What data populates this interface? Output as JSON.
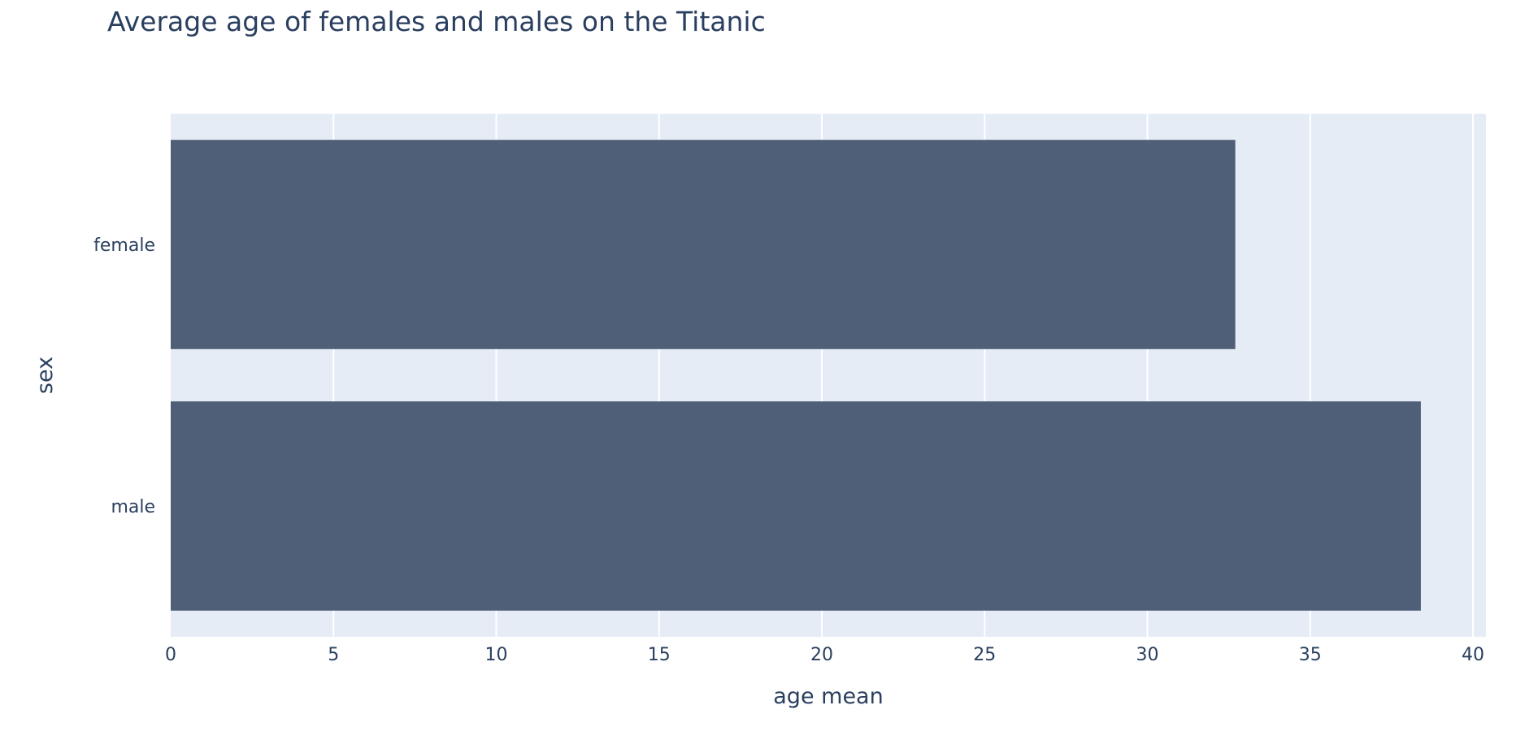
{
  "chart_data": {
    "type": "bar",
    "orientation": "horizontal",
    "title": "Average age of females and males on the Titanic",
    "xlabel": "age mean",
    "ylabel": "sex",
    "categories": [
      "female",
      "male"
    ],
    "values": [
      32.7,
      38.4
    ],
    "xlim": [
      0,
      40.4
    ],
    "xticks": [
      0,
      5,
      10,
      15,
      20,
      25,
      30,
      35,
      40
    ],
    "grid": true,
    "legend": "none",
    "colors": {
      "bar": "#505f78",
      "plot_background": "#e5ecf6",
      "gridline": "#ffffff",
      "text": "#2a3f5f"
    }
  }
}
